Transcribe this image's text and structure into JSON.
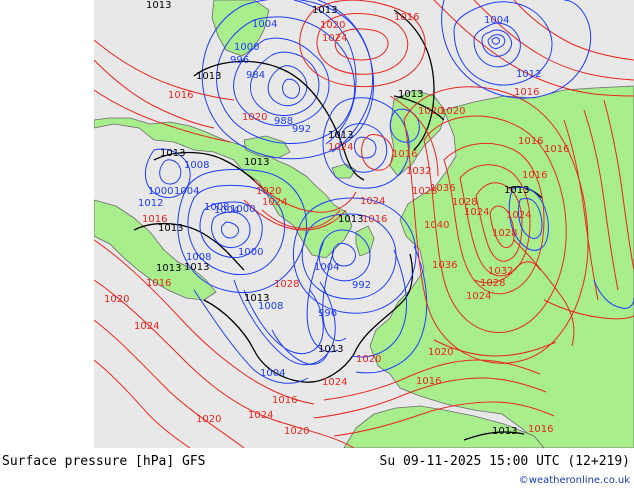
{
  "footer": {
    "title": "Surface pressure [hPa] GFS",
    "datetime": "Su 09-11-2025 15:00 UTC (12+219)",
    "copyright": "©weatheronline.co.uk"
  },
  "colors": {
    "ocean": "#e8e8e8",
    "land": "#a8ee8c",
    "low_isobar": "#1e3cff",
    "high_isobar": "#e8261e",
    "ref_isobar": "#000000",
    "coast": "#6a6a6a"
  },
  "isobar_labels": [
    {
      "text": "1013",
      "kind": "ref"
    },
    {
      "text": "1013",
      "kind": "ref"
    },
    {
      "text": "1004",
      "kind": "low"
    },
    {
      "text": "1000",
      "kind": "low"
    },
    {
      "text": "996",
      "kind": "low"
    },
    {
      "text": "984",
      "kind": "low"
    },
    {
      "text": "1013",
      "kind": "ref"
    },
    {
      "text": "1020",
      "kind": "high"
    },
    {
      "text": "1024",
      "kind": "high"
    },
    {
      "text": "1016",
      "kind": "high"
    },
    {
      "text": "1004",
      "kind": "low"
    },
    {
      "text": "1012",
      "kind": "low"
    },
    {
      "text": "1016",
      "kind": "high"
    },
    {
      "text": "1016",
      "kind": "high"
    },
    {
      "text": "1013",
      "kind": "ref"
    },
    {
      "text": "1020",
      "kind": "high"
    },
    {
      "text": "1020",
      "kind": "high"
    },
    {
      "text": "1016",
      "kind": "high"
    },
    {
      "text": "1016",
      "kind": "high"
    },
    {
      "text": "1020",
      "kind": "high"
    },
    {
      "text": "988",
      "kind": "low"
    },
    {
      "text": "992",
      "kind": "low"
    },
    {
      "text": "1013",
      "kind": "ref"
    },
    {
      "text": "1024",
      "kind": "high"
    },
    {
      "text": "1016",
      "kind": "high"
    },
    {
      "text": "1013",
      "kind": "ref"
    },
    {
      "text": "1008",
      "kind": "low"
    },
    {
      "text": "1013",
      "kind": "ref"
    },
    {
      "text": "1000",
      "kind": "low"
    },
    {
      "text": "1004",
      "kind": "low"
    },
    {
      "text": "1008",
      "kind": "low"
    },
    {
      "text": "1012",
      "kind": "low"
    },
    {
      "text": "1016",
      "kind": "high"
    },
    {
      "text": "1013",
      "kind": "ref"
    },
    {
      "text": "1020",
      "kind": "high"
    },
    {
      "text": "1024",
      "kind": "high"
    },
    {
      "text": "1013",
      "kind": "ref"
    },
    {
      "text": "1024",
      "kind": "high"
    },
    {
      "text": "1016",
      "kind": "high"
    },
    {
      "text": "1032",
      "kind": "high"
    },
    {
      "text": "1028",
      "kind": "high"
    },
    {
      "text": "1036",
      "kind": "high"
    },
    {
      "text": "1024",
      "kind": "high"
    },
    {
      "text": "1028",
      "kind": "high"
    },
    {
      "text": "1040",
      "kind": "high"
    },
    {
      "text": "1013",
      "kind": "ref"
    },
    {
      "text": "1016",
      "kind": "high"
    },
    {
      "text": "1013",
      "kind": "ref"
    },
    {
      "text": "1000",
      "kind": "low"
    },
    {
      "text": "1004",
      "kind": "low"
    },
    {
      "text": "1008",
      "kind": "low"
    },
    {
      "text": "1013",
      "kind": "ref"
    },
    {
      "text": "1016",
      "kind": "high"
    },
    {
      "text": "1028",
      "kind": "high"
    },
    {
      "text": "1013",
      "kind": "ref"
    },
    {
      "text": "1008",
      "kind": "low"
    },
    {
      "text": "1000",
      "kind": "low"
    },
    {
      "text": "1004",
      "kind": "low"
    },
    {
      "text": "992",
      "kind": "low"
    },
    {
      "text": "996",
      "kind": "low"
    },
    {
      "text": "1036",
      "kind": "high"
    },
    {
      "text": "1024",
      "kind": "high"
    },
    {
      "text": "1028",
      "kind": "high"
    },
    {
      "text": "1032",
      "kind": "high"
    },
    {
      "text": "1028",
      "kind": "high"
    },
    {
      "text": "1024",
      "kind": "high"
    },
    {
      "text": "1020",
      "kind": "high"
    },
    {
      "text": "1024",
      "kind": "high"
    },
    {
      "text": "1013",
      "kind": "ref"
    },
    {
      "text": "1004",
      "kind": "low"
    },
    {
      "text": "1020",
      "kind": "high"
    },
    {
      "text": "1020",
      "kind": "high"
    },
    {
      "text": "1016",
      "kind": "high"
    },
    {
      "text": "1024",
      "kind": "high"
    },
    {
      "text": "1016",
      "kind": "high"
    },
    {
      "text": "1020",
      "kind": "high"
    },
    {
      "text": "1024",
      "kind": "high"
    },
    {
      "text": "1020",
      "kind": "high"
    },
    {
      "text": "1013",
      "kind": "ref"
    },
    {
      "text": "1016",
      "kind": "high"
    }
  ]
}
